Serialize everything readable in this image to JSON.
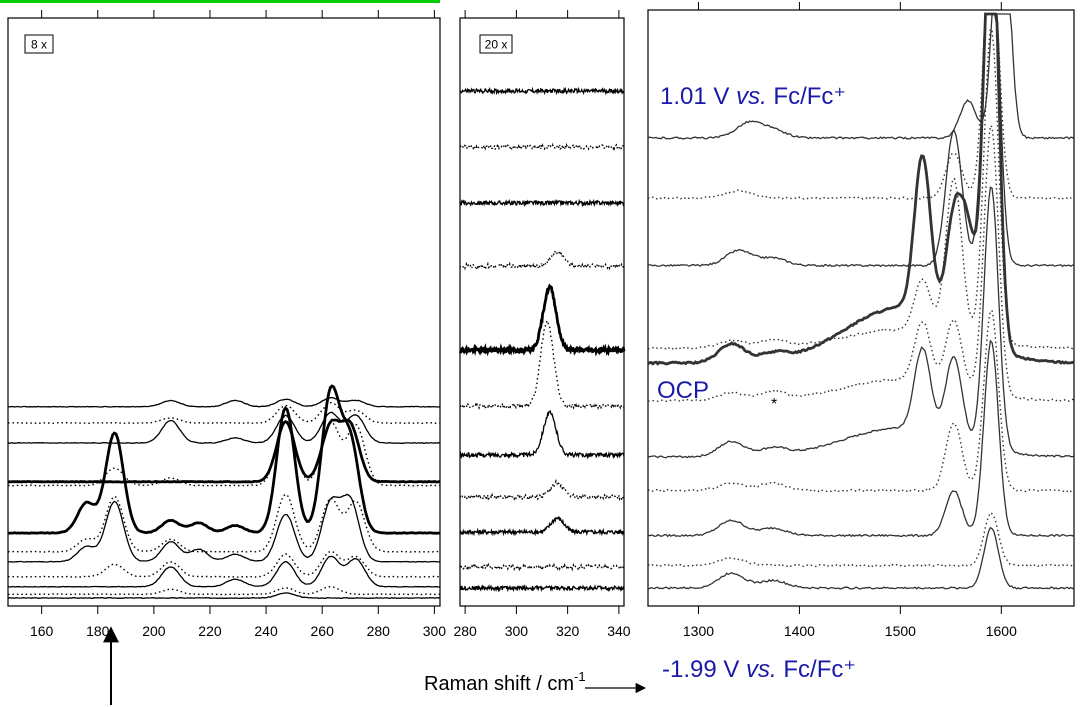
{
  "chart_data": [
    {
      "type": "line",
      "panel": "low-frequency",
      "multiplier_label": "8 x",
      "xlim": [
        148,
        302
      ],
      "ticks": [
        160,
        180,
        200,
        220,
        240,
        260,
        280,
        300
      ],
      "tick_labels": [
        "160",
        "180",
        "200",
        "220",
        "240",
        "260",
        "280",
        "300"
      ],
      "peaks": [
        176,
        186,
        206,
        216,
        229,
        247,
        263,
        270,
        272
      ],
      "traces": [
        {
          "style": "solid",
          "offset": 0.0,
          "amps": {
            "247": 0.2
          }
        },
        {
          "style": "dotted",
          "offset": 0.15,
          "amps": {
            "206": 0.2,
            "247": 0.25,
            "263": 0.3
          }
        },
        {
          "style": "solid",
          "offset": 0.45,
          "amps": {
            "206": 0.8,
            "229": 0.3,
            "247": 1.0,
            "263": 1.2,
            "272": 1.1
          }
        },
        {
          "style": "dotted",
          "offset": 0.85,
          "amps": {
            "186": 0.5,
            "206": 0.6,
            "247": 0.9,
            "263": 1.0,
            "272": 0.8
          }
        },
        {
          "style": "solid",
          "offset": 1.45,
          "amps": {
            "176": 0.6,
            "186": 2.4,
            "206": 0.8,
            "216": 0.5,
            "229": 0.3,
            "247": 1.9,
            "263": 2.3,
            "270": 2.4
          }
        },
        {
          "style": "dotted",
          "offset": 1.85,
          "amps": {
            "176": 0.5,
            "186": 2.2,
            "206": 0.5,
            "247": 2.3,
            "263": 2.1,
            "272": 2.0
          }
        },
        {
          "style": "bold",
          "offset": 2.6,
          "amps": {
            "176": 1.2,
            "186": 4.0,
            "206": 0.5,
            "216": 0.4,
            "229": 0.3,
            "247": 5.0,
            "263": 5.5,
            "270": 3.6
          }
        },
        {
          "style": "dotted",
          "offset": 4.5,
          "amps": {
            "186": 0.7,
            "206": 0.3,
            "247": 2.8,
            "263": 2.5,
            "272": 2.4
          }
        },
        {
          "style": "bold",
          "offset": 4.65,
          "amps": {
            "247": 2.4,
            "263": 2.2,
            "270": 2.2
          }
        },
        {
          "style": "solid",
          "offset": 6.2,
          "amps": {
            "206": 0.9,
            "229": 0.2,
            "247": 1.1,
            "263": 1.2,
            "272": 1.1
          }
        },
        {
          "style": "dotted",
          "offset": 7.0,
          "amps": {
            "206": 0.2,
            "247": 0.7,
            "263": 0.8,
            "272": 0.5
          }
        },
        {
          "style": "solid",
          "offset": 7.65,
          "amps": {
            "206": 0.25,
            "229": 0.25,
            "247": 0.3,
            "263": 0.35,
            "272": 0.25
          }
        }
      ]
    },
    {
      "type": "line",
      "panel": "mid-frequency",
      "multiplier_label": "20 x",
      "xlim": [
        278,
        342
      ],
      "ticks": [
        280,
        300,
        320,
        340
      ],
      "tick_labels": [
        "280",
        "300",
        "320",
        "340"
      ],
      "peaks": [
        313,
        316,
        323
      ],
      "traces": [
        {
          "style": "solid",
          "offset": 0.0,
          "amps": {}
        },
        {
          "style": "dotted",
          "offset": 0.3,
          "amps": {}
        },
        {
          "style": "solid",
          "offset": 0.8,
          "amps": {
            "316": 0.2
          }
        },
        {
          "style": "dotted",
          "offset": 1.3,
          "amps": {
            "316": 0.2
          }
        },
        {
          "style": "solid",
          "offset": 1.9,
          "amps": {
            "313": 0.6
          }
        },
        {
          "style": "dotted",
          "offset": 2.6,
          "amps": {
            "312": 1.2
          }
        },
        {
          "style": "bold",
          "offset": 3.4,
          "amps": {
            "313": 0.9
          }
        },
        {
          "style": "dotted",
          "offset": 4.6,
          "amps": {
            "316": 0.2
          }
        },
        {
          "style": "solid",
          "offset": 5.5,
          "amps": {}
        },
        {
          "style": "dotted",
          "offset": 6.3,
          "amps": {}
        },
        {
          "style": "solid",
          "offset": 7.1,
          "amps": {}
        }
      ]
    },
    {
      "type": "line",
      "panel": "high-frequency",
      "xlim": [
        1250,
        1672
      ],
      "ticks": [
        1300,
        1400,
        1500,
        1600
      ],
      "tick_labels": [
        "1300",
        "1400",
        "1500",
        "1600"
      ],
      "peaks": [
        1333,
        1374,
        1522,
        1553,
        1567,
        1590
      ],
      "traces": [
        {
          "style": "solid",
          "offset": 0.0,
          "amps": {
            "1333": 0.2,
            "1374": 0.1,
            "1590": 0.8
          }
        },
        {
          "style": "dotted",
          "offset": 0.3,
          "amps": {
            "1333": 0.1,
            "1590": 0.7
          }
        },
        {
          "style": "solid",
          "offset": 0.7,
          "amps": {
            "1333": 0.2,
            "1374": 0.1,
            "1553": 0.6,
            "1590": 2.6
          }
        },
        {
          "style": "dotted",
          "offset": 1.3,
          "amps": {
            "1333": 0.1,
            "1374": 0.1,
            "1553": 0.9,
            "1590": 2.4
          }
        },
        {
          "style": "solid",
          "offset": 1.75,
          "amps": {
            "1333": 0.2,
            "1374": 0.1,
            "1522": 1.1,
            "1553": 1.1,
            "1590": 3.5
          }
        },
        {
          "style": "dotted",
          "offset": 2.5,
          "amps": {
            "1333": 0.1,
            "1374": 0.1,
            "1522": 0.8,
            "1553": 0.9,
            "1590": 3.6
          }
        },
        {
          "style": "bold",
          "offset": 3.0,
          "amps": {
            "1333": 0.25,
            "1374": 0.1,
            "1522": 2.1,
            "1553": 1.4,
            "1567": 1.3,
            "1590": 6.0
          }
        },
        {
          "style": "dotted",
          "offset": 3.2,
          "amps": {
            "1333": 0.1,
            "1374": 0.1,
            "1522": 0.7,
            "1553": 2.1,
            "1590": 4.2
          }
        },
        {
          "style": "solid",
          "offset": 4.3,
          "amps": {
            "1340": 0.2,
            "1374": 0.1,
            "1553": 1.8,
            "1590": 5.0
          }
        },
        {
          "style": "dotted",
          "offset": 5.2,
          "amps": {
            "1340": 0.1,
            "1553": 0.6,
            "1590": 3.5
          }
        },
        {
          "style": "solid",
          "offset": 6.0,
          "amps": {
            "1350": 0.2,
            "1374": 0.1,
            "1567": 0.5,
            "1600": 4.0
          }
        }
      ]
    }
  ],
  "annotations": {
    "upper_potential_value": "1.01 V ",
    "upper_potential_vs": "vs.",
    "upper_potential_ref": " Fc/Fc⁺",
    "ocp": "OCP",
    "star": "*",
    "lower_potential_value": "-1.99 V ",
    "lower_potential_vs": "vs.",
    "lower_potential_ref": " Fc/Fc⁺",
    "x_axis_title": "Raman shift / cm",
    "x_axis_title_superscript": "-1"
  },
  "colors": {
    "annotation_blue": "#1a1aa8",
    "top_marker_green": "#00cc00",
    "trace_black": "#000000",
    "trace_gray": "#333333"
  }
}
